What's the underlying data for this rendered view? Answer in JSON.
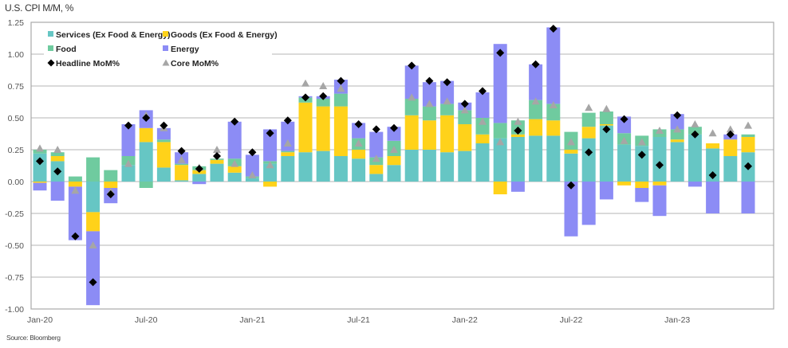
{
  "chart_data": {
    "type": "bar",
    "stacked": true,
    "title": "U.S. CPI M/M, %",
    "source": "Source: Bloomberg",
    "xlabel": "",
    "ylabel": "",
    "ylim": [
      -1.0,
      1.25
    ],
    "yticks": [
      1.25,
      1.0,
      0.75,
      0.5,
      0.25,
      0.0,
      -0.25,
      -0.5,
      -0.75,
      -1.0
    ],
    "ytick_labels": [
      "1.25",
      "1.00",
      "0.75",
      "0.50",
      "0.25",
      "0.00",
      "-0.25",
      "-0.50",
      "-0.75",
      "-1.00"
    ],
    "xtick_labels": [
      {
        "index": 0,
        "label": "Jan-20"
      },
      {
        "index": 6,
        "label": "Jul-20"
      },
      {
        "index": 12,
        "label": "Jan-21"
      },
      {
        "index": 18,
        "label": "Jul-21"
      },
      {
        "index": 24,
        "label": "Jan-22"
      },
      {
        "index": 30,
        "label": "Jul-22"
      },
      {
        "index": 36,
        "label": "Jan-23"
      }
    ],
    "grid": true,
    "legend_position": "top-left",
    "colors": {
      "services": "#66c6c4",
      "goods": "#ffd21a",
      "food": "#6fcb9f",
      "energy": "#8c8cf5",
      "headline": "#000000",
      "core": "#a6a6a6"
    },
    "legend": [
      {
        "key": "services",
        "label": "Services (Ex Food & Energy)",
        "marker": "square"
      },
      {
        "key": "goods",
        "label": "Goods (Ex Food & Energy)",
        "marker": "square"
      },
      {
        "key": "food",
        "label": "Food",
        "marker": "square"
      },
      {
        "key": "energy",
        "label": "Energy",
        "marker": "square"
      },
      {
        "key": "headline",
        "label": "Headline MoM%",
        "marker": "diamond"
      },
      {
        "key": "core",
        "label": "Core MoM%",
        "marker": "triangle"
      }
    ],
    "categories": [
      "Jan-20",
      "Feb-20",
      "Mar-20",
      "Apr-20",
      "May-20",
      "Jun-20",
      "Jul-20",
      "Aug-20",
      "Sep-20",
      "Oct-20",
      "Nov-20",
      "Dec-20",
      "Jan-21",
      "Feb-21",
      "Mar-21",
      "Apr-21",
      "May-21",
      "Jun-21",
      "Jul-21",
      "Aug-21",
      "Sep-21",
      "Oct-21",
      "Nov-21",
      "Dec-21",
      "Jan-22",
      "Feb-22",
      "Mar-22",
      "Apr-22",
      "May-22",
      "Jun-22",
      "Jul-22",
      "Aug-22",
      "Sep-22",
      "Oct-22",
      "Nov-22",
      "Dec-22",
      "Jan-23",
      "Feb-23",
      "Mar-23",
      "Apr-23",
      "May-23"
    ],
    "series": [
      {
        "name": "Services (Ex Food & Energy)",
        "key": "services",
        "kind": "bar",
        "values": [
          0.22,
          0.16,
          0.0,
          -0.24,
          0.0,
          0.13,
          0.31,
          0.11,
          0.01,
          0.06,
          0.14,
          0.07,
          0.03,
          0.14,
          0.2,
          0.23,
          0.24,
          0.2,
          0.18,
          0.06,
          0.13,
          0.25,
          0.25,
          0.23,
          0.24,
          0.3,
          0.34,
          0.35,
          0.36,
          0.36,
          0.22,
          0.34,
          0.44,
          0.29,
          0.28,
          0.35,
          0.31,
          0.37,
          0.26,
          0.2,
          0.23
        ]
      },
      {
        "name": "Goods (Ex Food & Energy)",
        "key": "goods",
        "kind": "bar",
        "values": [
          -0.01,
          0.04,
          -0.04,
          -0.15,
          -0.05,
          0.0,
          0.11,
          0.2,
          0.12,
          0.03,
          0.03,
          0.05,
          0.0,
          -0.04,
          0.03,
          0.39,
          0.35,
          0.39,
          0.07,
          0.07,
          0.07,
          0.27,
          0.23,
          0.29,
          0.21,
          0.07,
          -0.1,
          0.02,
          0.13,
          0.12,
          0.03,
          0.09,
          0.01,
          -0.03,
          -0.05,
          -0.03,
          0.02,
          0.0,
          0.04,
          0.13,
          0.12
        ]
      },
      {
        "name": "Food",
        "key": "food",
        "kind": "bar",
        "values": [
          0.03,
          0.03,
          0.04,
          0.19,
          0.09,
          0.07,
          -0.05,
          0.02,
          0.01,
          0.03,
          0.01,
          0.06,
          0.01,
          0.02,
          0.01,
          0.04,
          0.06,
          0.1,
          0.09,
          0.06,
          0.12,
          0.13,
          0.11,
          0.09,
          0.11,
          0.13,
          0.12,
          0.11,
          0.15,
          0.13,
          0.14,
          0.11,
          0.1,
          0.09,
          0.08,
          0.06,
          0.08,
          0.06,
          0.0,
          0.0,
          0.02
        ]
      },
      {
        "name": "Energy",
        "key": "energy",
        "kind": "bar",
        "values": [
          -0.06,
          -0.15,
          -0.42,
          -0.58,
          -0.12,
          0.25,
          0.14,
          0.09,
          0.09,
          -0.02,
          0.0,
          0.29,
          0.17,
          0.25,
          0.23,
          0.01,
          0.02,
          0.11,
          0.12,
          0.2,
          0.11,
          0.26,
          0.19,
          0.18,
          0.06,
          0.2,
          0.62,
          -0.08,
          0.28,
          0.6,
          -0.43,
          -0.34,
          -0.14,
          0.13,
          -0.11,
          -0.24,
          0.12,
          -0.04,
          -0.25,
          0.04,
          -0.25
        ]
      },
      {
        "name": "Headline MoM%",
        "key": "headline",
        "kind": "marker",
        "values": [
          0.16,
          0.08,
          -0.43,
          -0.79,
          -0.1,
          0.44,
          0.5,
          0.44,
          0.24,
          0.1,
          0.2,
          0.47,
          0.23,
          0.38,
          0.48,
          0.66,
          0.67,
          0.79,
          0.45,
          0.41,
          0.42,
          0.91,
          0.79,
          0.78,
          0.61,
          0.71,
          1.01,
          0.4,
          0.92,
          1.2,
          -0.03,
          0.23,
          0.41,
          0.49,
          0.21,
          0.13,
          0.52,
          0.37,
          0.05,
          0.37,
          0.12
        ]
      },
      {
        "name": "Core MoM%",
        "key": "core",
        "kind": "marker",
        "values": [
          0.26,
          0.25,
          -0.07,
          -0.5,
          -0.08,
          0.14,
          0.52,
          0.42,
          0.17,
          0.11,
          0.25,
          0.14,
          0.05,
          0.13,
          0.3,
          0.77,
          0.75,
          0.73,
          0.3,
          0.18,
          0.25,
          0.66,
          0.61,
          0.63,
          0.56,
          0.47,
          0.31,
          0.47,
          0.63,
          0.6,
          0.31,
          0.58,
          0.57,
          0.32,
          0.31,
          0.4,
          0.41,
          0.45,
          0.38,
          0.41,
          0.44
        ]
      }
    ]
  }
}
